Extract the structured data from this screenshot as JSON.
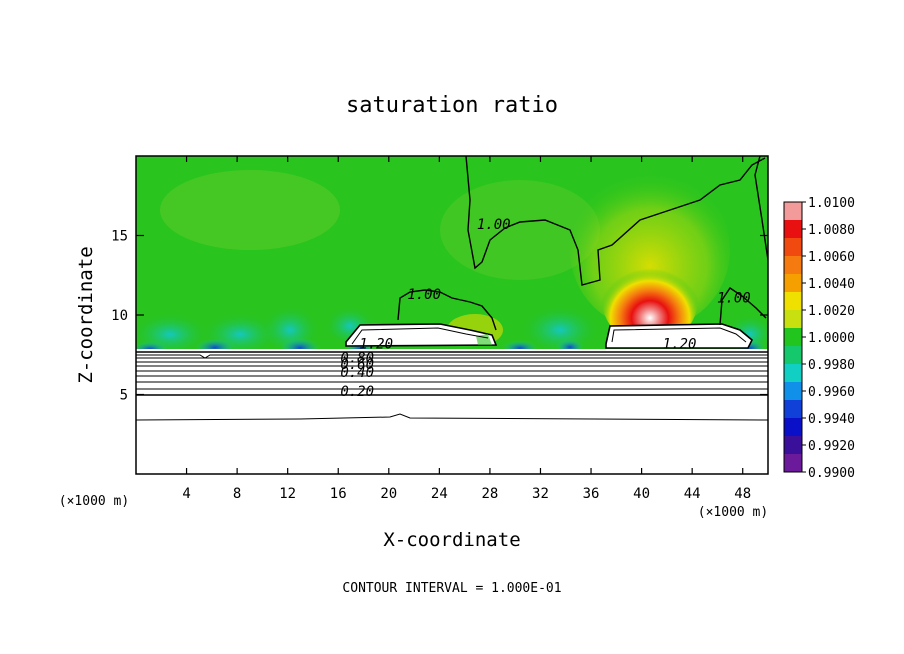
{
  "chart_data": {
    "type": "heatmap",
    "title": "saturation ratio",
    "xlabel": "X-coordinate",
    "ylabel": "Z-coordinate",
    "x_unit": "(×1000 m)",
    "y_unit": "(×1000 m)",
    "footer": "CONTOUR INTERVAL = 1.000E-01",
    "xlim": [
      0,
      50
    ],
    "ylim": [
      0,
      20
    ],
    "x_ticks": [
      4,
      8,
      12,
      16,
      20,
      24,
      28,
      32,
      36,
      40,
      44,
      48
    ],
    "y_ticks": [
      5,
      10,
      15
    ],
    "colorbar": {
      "min": 0.99,
      "max": 1.01,
      "ticks": [
        "1.0100",
        "1.0080",
        "1.0060",
        "1.0040",
        "1.0020",
        "1.0000",
        "0.9980",
        "0.9960",
        "0.9940",
        "0.9920",
        "0.9900"
      ],
      "colors": [
        "#f39a9a",
        "#e81010",
        "#f04a10",
        "#f57a10",
        "#f5a000",
        "#f0e000",
        "#c8e010",
        "#22c51e",
        "#16c86c",
        "#12cfc4",
        "#1090e8",
        "#1040d8",
        "#0a10c8",
        "#3a109a",
        "#6a1a9a"
      ]
    },
    "contour_labels": [
      {
        "text": "1.00",
        "x": 28.3,
        "y": 15.4
      },
      {
        "text": "1.00",
        "x": 22.8,
        "y": 11.0
      },
      {
        "text": "1.00",
        "x": 47.3,
        "y": 10.8
      },
      {
        "text": "1.20",
        "x": 19.0,
        "y": 7.9
      },
      {
        "text": "1.20",
        "x": 43.0,
        "y": 7.9
      },
      {
        "text": "0.80",
        "x": 17.5,
        "y": 7.0
      },
      {
        "text": "0.60",
        "x": 17.5,
        "y": 6.6
      },
      {
        "text": "0.40",
        "x": 17.5,
        "y": 6.1
      },
      {
        "text": "0.20",
        "x": 17.5,
        "y": 4.9
      }
    ]
  }
}
